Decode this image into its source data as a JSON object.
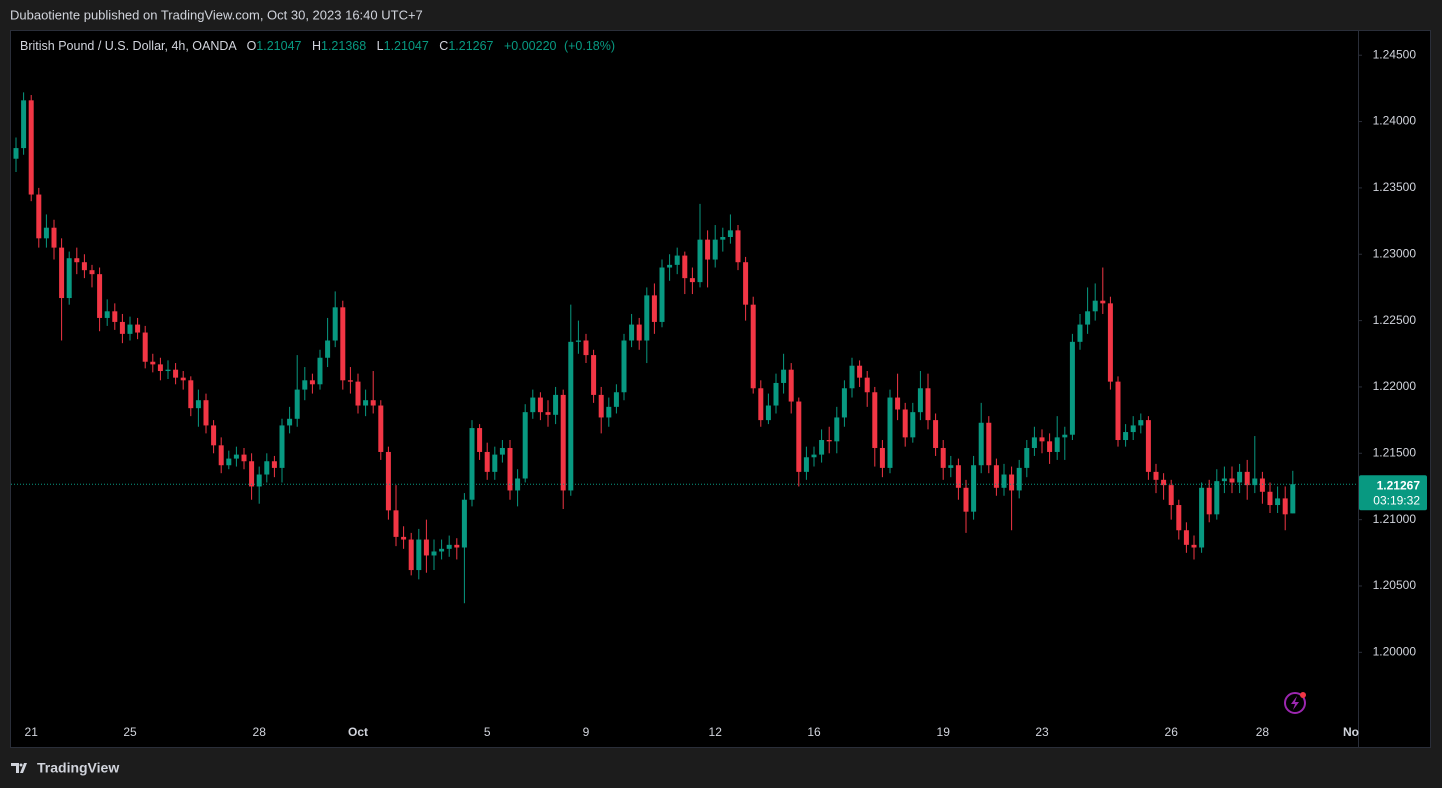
{
  "header": "Dubaotiente published on TradingView.com, Oct 30, 2023 16:40 UTC+7",
  "footer": "TradingView",
  "chart_data": {
    "type": "candlestick",
    "title": "British Pound / U.S. Dollar, 4h, OANDA",
    "ohlc_labels": [
      "O",
      "H",
      "L",
      "C"
    ],
    "change": "+0.00220",
    "change_pct": "(+0.18%)",
    "countdown": "03:19:32",
    "up_color": "#089981",
    "down_color": "#f23645",
    "categories": [
      null,
      null,
      "21",
      null,
      null,
      null,
      null,
      null,
      null,
      null,
      null,
      null,
      null,
      null,
      null,
      "25",
      null,
      null,
      null,
      null,
      null,
      null,
      null,
      null,
      null,
      null,
      null,
      null,
      null,
      null,
      null,
      null,
      "28",
      null,
      null,
      null,
      null,
      null,
      null,
      null,
      null,
      null,
      null,
      null,
      null,
      "Oct",
      null,
      null,
      null,
      null,
      null,
      null,
      null,
      null,
      null,
      null,
      null,
      null,
      null,
      null,
      null,
      null,
      "5",
      null,
      null,
      null,
      null,
      null,
      null,
      null,
      null,
      null,
      null,
      null,
      null,
      "9",
      null,
      null,
      null,
      null,
      null,
      null,
      null,
      null,
      null,
      null,
      null,
      null,
      null,
      null,
      null,
      null,
      "12",
      null,
      null,
      null,
      null,
      null,
      null,
      null,
      null,
      null,
      null,
      null,
      null,
      "16",
      null,
      null,
      null,
      null,
      null,
      null,
      null,
      null,
      null,
      null,
      null,
      null,
      null,
      null,
      null,
      null,
      "19",
      null,
      null,
      null,
      null,
      null,
      null,
      null,
      null,
      null,
      null,
      null,
      null,
      "23",
      null,
      null,
      null,
      null,
      null,
      null,
      null,
      null,
      null,
      null,
      null,
      null,
      null,
      null,
      null,
      null,
      "26",
      null,
      null,
      null,
      null,
      null,
      null,
      null,
      null,
      null,
      null,
      null,
      "28",
      null,
      null,
      null,
      null
    ],
    "x_axis_cut_label": "No",
    "open": [
      1.2372,
      1.238,
      1.2416,
      1.2345,
      1.2312,
      1.232,
      1.2305,
      1.2267,
      1.2297,
      1.2294,
      1.2288,
      1.2285,
      1.2252,
      1.2257,
      1.2249,
      1.224,
      1.2247,
      1.2241,
      1.2219,
      1.2217,
      1.2212,
      1.2213,
      1.2207,
      1.2205,
      1.2184,
      1.219,
      1.2171,
      1.2156,
      1.2141,
      1.2146,
      1.2149,
      1.2144,
      1.2125,
      1.2134,
      1.2144,
      1.2139,
      1.2171,
      1.2176,
      1.2198,
      1.2205,
      1.2202,
      1.2222,
      1.2235,
      1.226,
      1.2205,
      1.2204,
      1.2186,
      1.219,
      1.2186,
      1.2151,
      1.2107,
      1.2087,
      1.2085,
      1.2062,
      1.2085,
      1.2073,
      1.2076,
      1.2078,
      1.2081,
      1.2079,
      1.2115,
      1.2169,
      1.2151,
      1.2136,
      1.2149,
      1.2154,
      1.2122,
      1.2131,
      1.2181,
      1.2192,
      1.2181,
      1.2179,
      1.2194,
      1.2122,
      1.2234,
      1.2235,
      1.2224,
      1.2194,
      1.2177,
      1.2185,
      1.2196,
      1.2235,
      1.2247,
      1.2235,
      1.2269,
      1.2249,
      1.229,
      1.2292,
      1.2299,
      1.2282,
      1.2279,
      1.2311,
      1.2296,
      1.2311,
      1.2313,
      1.2318,
      1.2294,
      1.2262,
      1.2199,
      1.2175,
      1.2186,
      1.2203,
      1.2213,
      1.2189,
      1.2136,
      1.2147,
      1.2149,
      1.216,
      1.2159,
      1.2177,
      1.2199,
      1.2216,
      1.2207,
      1.2196,
      1.2154,
      1.2139,
      1.2192,
      1.2183,
      1.2162,
      1.2181,
      1.2199,
      1.2175,
      1.2154,
      1.2139,
      1.2141,
      1.2124,
      1.2106,
      1.2141,
      1.2173,
      1.2141,
      1.2124,
      1.2134,
      1.2122,
      1.2139,
      1.2154,
      1.2162,
      1.2159,
      1.2151,
      1.2162,
      1.2164,
      1.2234,
      1.2247,
      1.2257,
      1.2265,
      1.2263,
      1.2204,
      1.216,
      1.2166,
      1.2171,
      1.2175,
      1.2136,
      1.213,
      1.2126,
      1.2111,
      1.2092,
      1.2081,
      1.2079,
      1.2124,
      1.2104,
      1.2129,
      1.2131,
      1.2128,
      1.2136,
      1.2126,
      1.2131,
      1.2121,
      1.2111,
      1.2116,
      1.21047
    ],
    "high": [
      1.2388,
      1.2422,
      1.242,
      1.235,
      1.233,
      1.2326,
      1.2312,
      1.2302,
      1.2305,
      1.23,
      1.2292,
      1.229,
      1.2266,
      1.2263,
      1.2255,
      1.2253,
      1.2252,
      1.2246,
      1.2225,
      1.2222,
      1.222,
      1.2218,
      1.2212,
      1.2208,
      1.2198,
      1.2195,
      1.2175,
      1.2162,
      1.2152,
      1.2155,
      1.2154,
      1.215,
      1.214,
      1.215,
      1.2148,
      1.2176,
      1.2185,
      1.2224,
      1.2215,
      1.221,
      1.2228,
      1.2252,
      1.2272,
      1.2265,
      1.2215,
      1.221,
      1.2198,
      1.2212,
      1.219,
      1.2155,
      1.2126,
      1.2095,
      1.209,
      1.2093,
      1.21,
      1.2085,
      1.2085,
      1.2088,
      1.2086,
      1.212,
      1.2175,
      1.2172,
      1.2158,
      1.2155,
      1.216,
      1.216,
      1.2138,
      1.2187,
      1.2198,
      1.2196,
      1.219,
      1.22,
      1.2198,
      1.2262,
      1.225,
      1.224,
      1.2228,
      1.22,
      1.2192,
      1.2202,
      1.224,
      1.2255,
      1.2252,
      1.2275,
      1.2278,
      1.2296,
      1.23,
      1.2305,
      1.2302,
      1.229,
      1.2338,
      1.2318,
      1.2322,
      1.232,
      1.233,
      1.2322,
      1.2298,
      1.2268,
      1.2205,
      1.2195,
      1.221,
      1.2225,
      1.2218,
      1.2192,
      1.2155,
      1.2155,
      1.2168,
      1.217,
      1.2185,
      1.2205,
      1.2222,
      1.222,
      1.2212,
      1.22,
      1.216,
      1.2198,
      1.221,
      1.2188,
      1.2188,
      1.2212,
      1.221,
      1.218,
      1.216,
      1.2148,
      1.2146,
      1.213,
      1.2148,
      1.2188,
      1.2178,
      1.2146,
      1.2142,
      1.214,
      1.2145,
      1.216,
      1.217,
      1.2168,
      1.2165,
      1.2178,
      1.217,
      1.224,
      1.2255,
      1.2275,
      1.2278,
      1.229,
      1.2268,
      1.2208,
      1.2172,
      1.2178,
      1.218,
      1.2178,
      1.2142,
      1.2135,
      1.213,
      1.2115,
      1.2098,
      1.2088,
      1.2128,
      1.213,
      1.2138,
      1.214,
      1.214,
      1.2142,
      1.2145,
      1.2163,
      1.2136,
      1.2128,
      1.2125,
      1.2125,
      1.21368
    ],
    "low": [
      1.2362,
      1.2375,
      1.234,
      1.2305,
      1.2305,
      1.2296,
      1.2235,
      1.2262,
      1.2285,
      1.2282,
      1.2275,
      1.2242,
      1.2246,
      1.2243,
      1.2233,
      1.2235,
      1.2236,
      1.2214,
      1.2211,
      1.2205,
      1.2206,
      1.2202,
      1.2198,
      1.2178,
      1.217,
      1.2165,
      1.215,
      1.2135,
      1.2138,
      1.214,
      1.2138,
      1.2115,
      1.2112,
      1.2128,
      1.2132,
      1.2128,
      1.2165,
      1.217,
      1.219,
      1.2195,
      1.2198,
      1.2215,
      1.223,
      1.2198,
      1.2195,
      1.218,
      1.2178,
      1.218,
      1.2145,
      1.21,
      1.208,
      1.2078,
      1.2058,
      1.2055,
      1.206,
      1.2062,
      1.207,
      1.2072,
      1.207,
      1.2037,
      1.211,
      1.2145,
      1.213,
      1.213,
      1.2143,
      1.2115,
      1.211,
      1.2128,
      1.2176,
      1.2175,
      1.217,
      1.2172,
      1.2108,
      1.2118,
      1.2225,
      1.2218,
      1.2188,
      1.2165,
      1.217,
      1.218,
      1.219,
      1.223,
      1.2228,
      1.2218,
      1.224,
      1.2245,
      1.228,
      1.2285,
      1.227,
      1.227,
      1.2275,
      1.2275,
      1.229,
      1.2302,
      1.2308,
      1.2288,
      1.225,
      1.2195,
      1.217,
      1.2172,
      1.218,
      1.2195,
      1.218,
      1.2125,
      1.213,
      1.214,
      1.2143,
      1.215,
      1.215,
      1.217,
      1.2192,
      1.22,
      1.2185,
      1.214,
      1.2132,
      1.2135,
      1.2175,
      1.2155,
      1.2158,
      1.2175,
      1.2168,
      1.2148,
      1.213,
      1.2132,
      1.2115,
      1.209,
      1.21,
      1.2135,
      1.2135,
      1.2118,
      1.2118,
      1.2092,
      1.2116,
      1.2132,
      1.2148,
      1.215,
      1.2142,
      1.2145,
      1.2145,
      1.216,
      1.2228,
      1.224,
      1.225,
      1.2255,
      1.2198,
      1.2155,
      1.2155,
      1.216,
      1.2165,
      1.213,
      1.212,
      1.2115,
      1.21,
      1.2085,
      1.2075,
      1.207,
      1.2075,
      1.2098,
      1.21,
      1.212,
      1.212,
      1.212,
      1.2115,
      1.212,
      1.2112,
      1.2105,
      1.2105,
      1.2092,
      1.21047
    ],
    "close": [
      1.238,
      1.2416,
      1.2345,
      1.2312,
      1.232,
      1.2305,
      1.2267,
      1.2297,
      1.2294,
      1.2288,
      1.2285,
      1.2252,
      1.2257,
      1.2249,
      1.224,
      1.2247,
      1.2241,
      1.2219,
      1.2217,
      1.2212,
      1.2213,
      1.2207,
      1.2205,
      1.2184,
      1.219,
      1.2171,
      1.2156,
      1.2141,
      1.2146,
      1.2149,
      1.2144,
      1.2125,
      1.2134,
      1.2144,
      1.2139,
      1.2171,
      1.2176,
      1.2198,
      1.2205,
      1.2202,
      1.2222,
      1.2235,
      1.226,
      1.2205,
      1.2204,
      1.2186,
      1.219,
      1.2186,
      1.2151,
      1.2107,
      1.2087,
      1.2085,
      1.2062,
      1.2085,
      1.2073,
      1.2076,
      1.2078,
      1.2081,
      1.2079,
      1.2115,
      1.2169,
      1.2151,
      1.2136,
      1.2149,
      1.2154,
      1.2122,
      1.2131,
      1.2181,
      1.2192,
      1.2181,
      1.2179,
      1.2194,
      1.2122,
      1.2234,
      1.2235,
      1.2224,
      1.2194,
      1.2177,
      1.2185,
      1.2196,
      1.2235,
      1.2247,
      1.2235,
      1.2269,
      1.2249,
      1.229,
      1.2292,
      1.2299,
      1.2282,
      1.2279,
      1.2311,
      1.2296,
      1.2311,
      1.2313,
      1.2318,
      1.2294,
      1.2262,
      1.2199,
      1.2175,
      1.2186,
      1.2203,
      1.2213,
      1.2189,
      1.2136,
      1.2147,
      1.2149,
      1.216,
      1.2159,
      1.2177,
      1.2199,
      1.2216,
      1.2207,
      1.2196,
      1.2154,
      1.2139,
      1.2192,
      1.2183,
      1.2162,
      1.2181,
      1.2199,
      1.2175,
      1.2154,
      1.2139,
      1.2141,
      1.2124,
      1.2106,
      1.2141,
      1.2173,
      1.2141,
      1.2124,
      1.2134,
      1.2122,
      1.2139,
      1.2154,
      1.2162,
      1.2159,
      1.2151,
      1.2162,
      1.2164,
      1.2234,
      1.2247,
      1.2257,
      1.2265,
      1.2263,
      1.2204,
      1.216,
      1.2166,
      1.2171,
      1.2175,
      1.2136,
      1.213,
      1.2126,
      1.2111,
      1.2092,
      1.2081,
      1.2079,
      1.2124,
      1.2104,
      1.2129,
      1.2131,
      1.2128,
      1.2136,
      1.2126,
      1.2131,
      1.2121,
      1.2111,
      1.2116,
      1.2104,
      1.21267
    ],
    "ylim": [
      1.1949,
      1.2469
    ],
    "yticks": [
      {
        "value": 1.2,
        "label": "1.20000"
      },
      {
        "value": 1.205,
        "label": "1.20500"
      },
      {
        "value": 1.21,
        "label": "1.21000"
      },
      {
        "value": 1.215,
        "label": "1.21500"
      },
      {
        "value": 1.22,
        "label": "1.22000"
      },
      {
        "value": 1.225,
        "label": "1.22500"
      },
      {
        "value": 1.23,
        "label": "1.23000"
      },
      {
        "value": 1.235,
        "label": "1.23500"
      },
      {
        "value": 1.24,
        "label": "1.24000"
      },
      {
        "value": 1.245,
        "label": "1.24500"
      }
    ],
    "grid": false
  }
}
